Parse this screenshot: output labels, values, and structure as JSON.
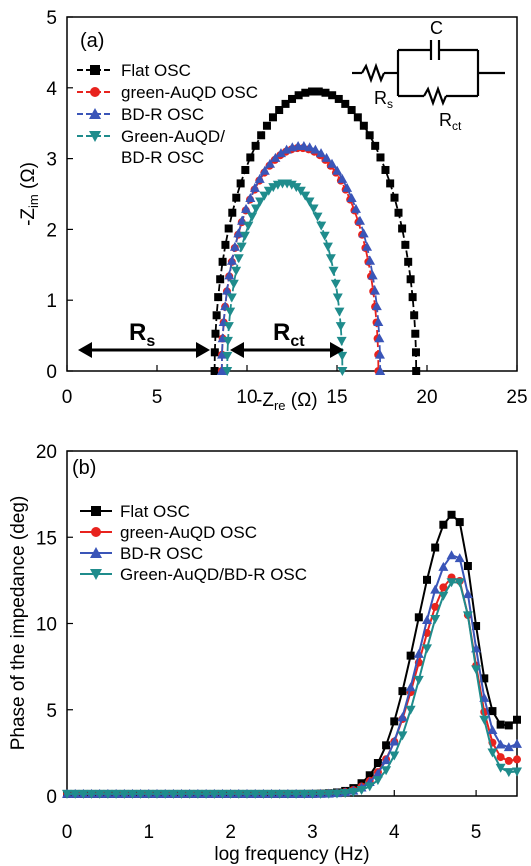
{
  "chart_data": [
    {
      "type": "scatter",
      "panel_label": "(a)",
      "xlabel": "-Zre (Ω)",
      "ylabel": "-Zim (Ω)",
      "xlim": [
        0,
        25
      ],
      "ylim": [
        0,
        5
      ],
      "xticks": [
        "0",
        "5",
        "10",
        "15",
        "20",
        "25"
      ],
      "yticks": [
        "0",
        "1",
        "2",
        "3",
        "4",
        "5"
      ],
      "legend_position": "top-left",
      "annotations": {
        "rs_label": "Rs",
        "rct_label": "Rct",
        "circuit": {
          "c_label": "C",
          "rs_label": "Rs",
          "rct_label": "Rct"
        }
      },
      "series": [
        {
          "name": "Flat OSC",
          "color": "#000000",
          "marker": "square",
          "rs": 8.2,
          "rct": 11.2,
          "peak": 3.95,
          "n": 48
        },
        {
          "name": "green-AuQD OSC",
          "color": "#e8231e",
          "marker": "circle",
          "rs": 8.6,
          "rct": 8.7,
          "peak": 3.15,
          "n": 44
        },
        {
          "name": "BD-R OSC",
          "color": "#3a55b8",
          "marker": "triangle-up",
          "rs": 8.6,
          "rct": 8.8,
          "peak": 3.18,
          "n": 44
        },
        {
          "name": "Green-AuQD/ BD-R OSC",
          "legend_lines": [
            "Green-AuQD/",
            "BD-R OSC"
          ],
          "color": "#1f8c8c",
          "marker": "triangle-down",
          "rs": 8.9,
          "rct": 6.4,
          "peak": 2.65,
          "n": 40
        }
      ]
    },
    {
      "type": "line",
      "panel_label": "(b)",
      "xlabel": "log frequency (Hz)",
      "ylabel": "Phase of the impedance (deg)",
      "xlim": [
        0,
        5.5
      ],
      "ylim": [
        0,
        20
      ],
      "xticks": [
        "0",
        "1",
        "2",
        "3",
        "4",
        "5"
      ],
      "yticks": [
        "0",
        "5",
        "10",
        "15",
        "20"
      ],
      "legend_position": "top-left",
      "series": [
        {
          "name": "Flat OSC",
          "color": "#000000",
          "marker": "square",
          "peak": 16.2,
          "peak_x": 4.72,
          "low_sigma": 0.62,
          "high_sigma": 0.34,
          "end_value": 4.3
        },
        {
          "name": "green-AuQD OSC",
          "color": "#e8231e",
          "marker": "circle",
          "peak": 12.6,
          "peak_x": 4.74,
          "low_sigma": 0.62,
          "high_sigma": 0.33,
          "end_value": 2.0
        },
        {
          "name": "BD-R OSC",
          "color": "#3a55b8",
          "marker": "triangle-up",
          "peak": 13.9,
          "peak_x": 4.74,
          "low_sigma": 0.6,
          "high_sigma": 0.33,
          "end_value": 2.9
        },
        {
          "name": "Green-AuQD/BD-R OSC",
          "color": "#1f8c8c",
          "marker": "triangle-down",
          "peak": 12.4,
          "peak_x": 4.76,
          "low_sigma": 0.58,
          "high_sigma": 0.31,
          "end_value": 1.3
        }
      ]
    }
  ]
}
